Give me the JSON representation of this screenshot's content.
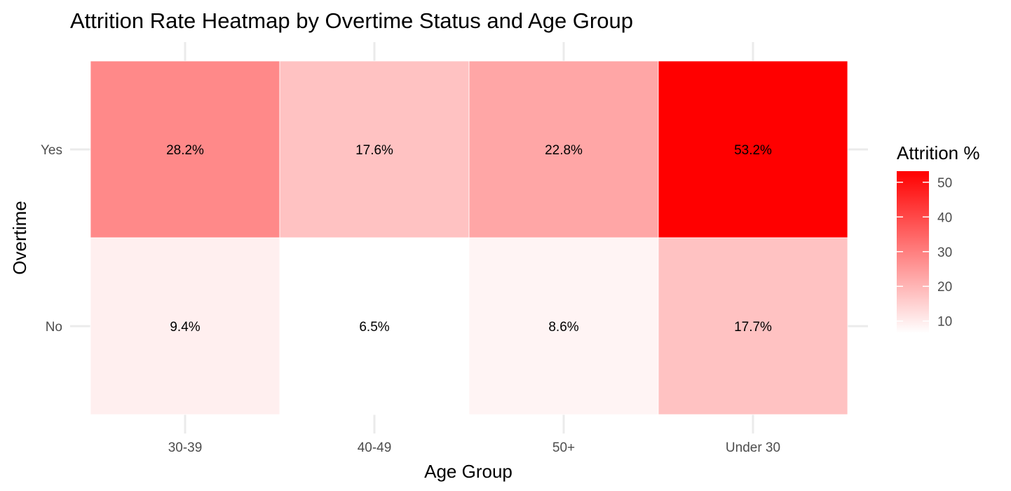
{
  "chart_data": {
    "type": "heatmap",
    "title": "Attrition Rate Heatmap by Overtime Status and Age Group",
    "xlabel": "Age Group",
    "ylabel": "Overtime",
    "x_categories": [
      "30-39",
      "40-49",
      "50+",
      "Under 30"
    ],
    "y_categories": [
      "No",
      "Yes"
    ],
    "cells": [
      {
        "x": "30-39",
        "y": "Yes",
        "value": 28.2,
        "label": "28.2%"
      },
      {
        "x": "40-49",
        "y": "Yes",
        "value": 17.6,
        "label": "17.6%"
      },
      {
        "x": "50+",
        "y": "Yes",
        "value": 22.8,
        "label": "22.8%"
      },
      {
        "x": "Under 30",
        "y": "Yes",
        "value": 53.2,
        "label": "53.2%"
      },
      {
        "x": "30-39",
        "y": "No",
        "value": 9.4,
        "label": "9.4%"
      },
      {
        "x": "40-49",
        "y": "No",
        "value": 6.5,
        "label": "6.5%"
      },
      {
        "x": "50+",
        "y": "No",
        "value": 8.6,
        "label": "8.6%"
      },
      {
        "x": "Under 30",
        "y": "No",
        "value": 17.7,
        "label": "17.7%"
      }
    ],
    "color_scale": {
      "low_color": "#ffffff",
      "high_color": "#ff0000",
      "min": 6.5,
      "max": 53.2
    },
    "legend": {
      "title": "Attrition %",
      "ticks": [
        10,
        20,
        30,
        40,
        50
      ],
      "placement": "right"
    },
    "grid": true
  }
}
